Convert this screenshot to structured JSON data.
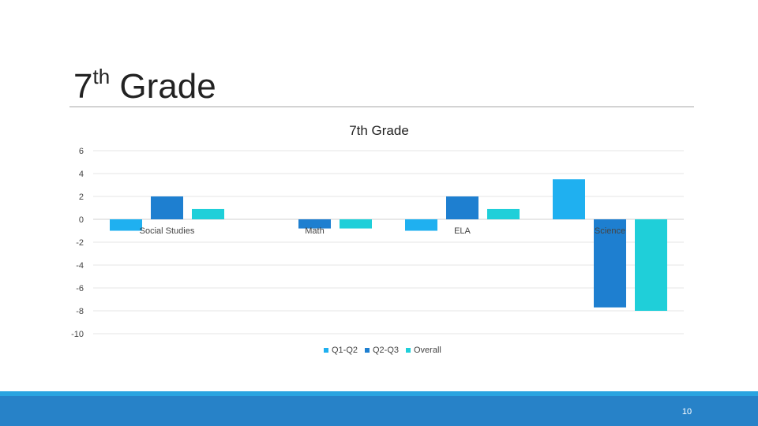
{
  "slide": {
    "title_main": "7",
    "title_sup": "th",
    "title_rest": " Grade",
    "page_number": "10"
  },
  "chart_data": {
    "type": "bar",
    "title": "7th Grade",
    "categories": [
      "Social Studies",
      "Math",
      "ELA",
      "Science"
    ],
    "series": [
      {
        "name": "Q1-Q2",
        "color": "#1fb0f0",
        "values": [
          -1,
          0,
          -1,
          3.5
        ]
      },
      {
        "name": "Q2-Q3",
        "color": "#1e7fd0",
        "values": [
          2,
          -0.8,
          2,
          -7.7
        ]
      },
      {
        "name": "Overall",
        "color": "#1fcfd9",
        "values": [
          0.9,
          -0.8,
          0.9,
          -8
        ]
      }
    ],
    "ylim": [
      -10,
      6
    ],
    "yticks": [
      6,
      4,
      2,
      0,
      -2,
      -4,
      -6,
      -8,
      -10
    ],
    "grid": true,
    "legend_position": "bottom"
  }
}
